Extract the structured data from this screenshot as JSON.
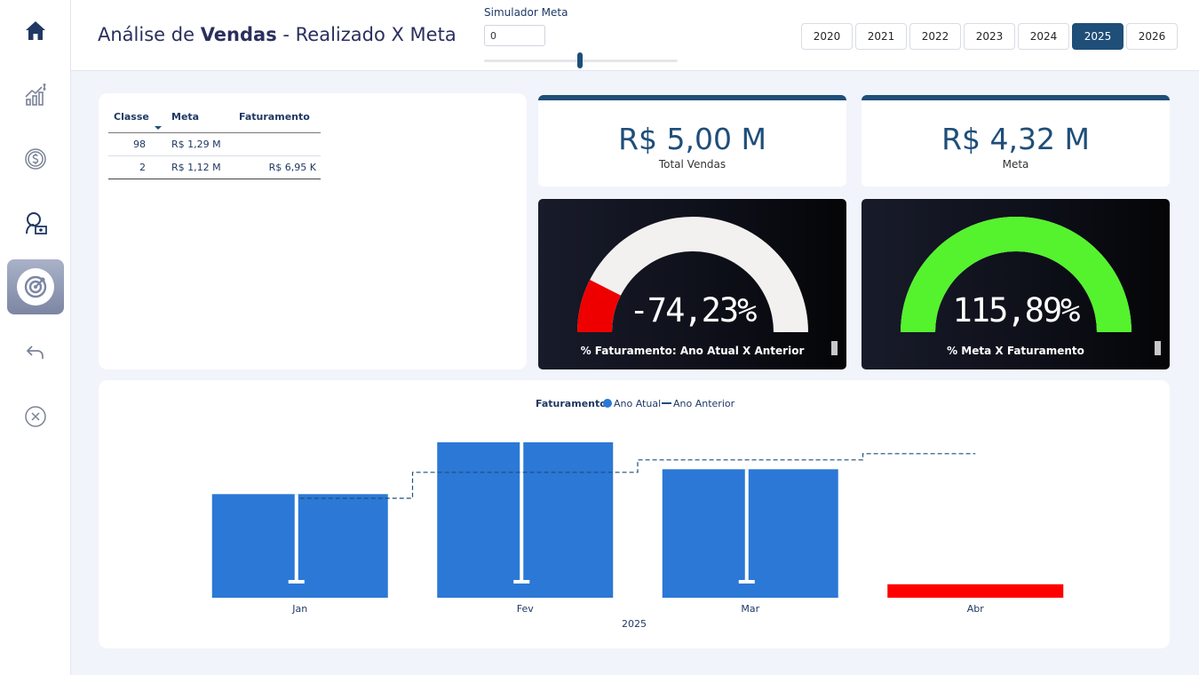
{
  "header": {
    "title_pre": "Análise de",
    "title_bold": "Vendas",
    "title_post": "- Realizado X Meta",
    "simulator": {
      "label": "Simulador Meta",
      "value": "0",
      "level": 0.5
    },
    "years": [
      "2020",
      "2021",
      "2022",
      "2023",
      "2024",
      "2025",
      "2026"
    ],
    "selected_year": "2025"
  },
  "sidebar": {
    "items": [
      {
        "name": "home-icon"
      },
      {
        "name": "sales-chart-icon"
      },
      {
        "name": "coin-icon"
      },
      {
        "name": "customer-money-icon"
      },
      {
        "name": "target-icon",
        "active": true
      },
      {
        "name": "back-arrow-icon"
      },
      {
        "name": "close-circle-icon"
      }
    ]
  },
  "table": {
    "headers": {
      "classe": "Classe",
      "meta": "Meta",
      "faturamento": "Faturamento"
    },
    "rows": [
      {
        "classe": "98",
        "meta": "R$ 1,29 M",
        "faturamento": ""
      },
      {
        "classe": "2",
        "meta": "R$ 1,12 M",
        "faturamento": "R$ 6,95 K"
      }
    ]
  },
  "kpis": {
    "total_vendas": {
      "value": "R$ 5,00 M",
      "label": "Total Vendas"
    },
    "meta": {
      "value": "R$ 4,32 M",
      "label": "Meta"
    }
  },
  "gauges": {
    "faturamento": {
      "value": "-74,23%",
      "label": "% Faturamento: Ano Atual X Anterior",
      "fill_fraction": 0.15,
      "fill_color": "#ee0000",
      "track_color": "#f2f1ef"
    },
    "meta": {
      "value": "115,89%",
      "label": "% Meta X Faturamento",
      "fill_fraction": 1.0,
      "fill_color": "#55f22e",
      "track_color": "#f2f1ef"
    }
  },
  "chart_data": {
    "type": "bar",
    "legend_title": "Faturamento:",
    "legend": [
      "Ano Atual",
      "Ano Anterior"
    ],
    "categories": [
      "Jan",
      "Fev",
      "Mar",
      "Abr"
    ],
    "xlabel": "2025",
    "series": [
      {
        "name": "Ano Atual",
        "values": [
          1.0,
          1.5,
          1.24,
          0.13
        ],
        "colors": [
          "#2b78d6",
          "#2b78d6",
          "#2b78d6",
          "#ff0000"
        ]
      },
      {
        "name": "Ano Anterior",
        "values": [
          0.96,
          1.21,
          1.33,
          1.39
        ]
      }
    ],
    "ylim": [
      0,
      1.5
    ]
  }
}
